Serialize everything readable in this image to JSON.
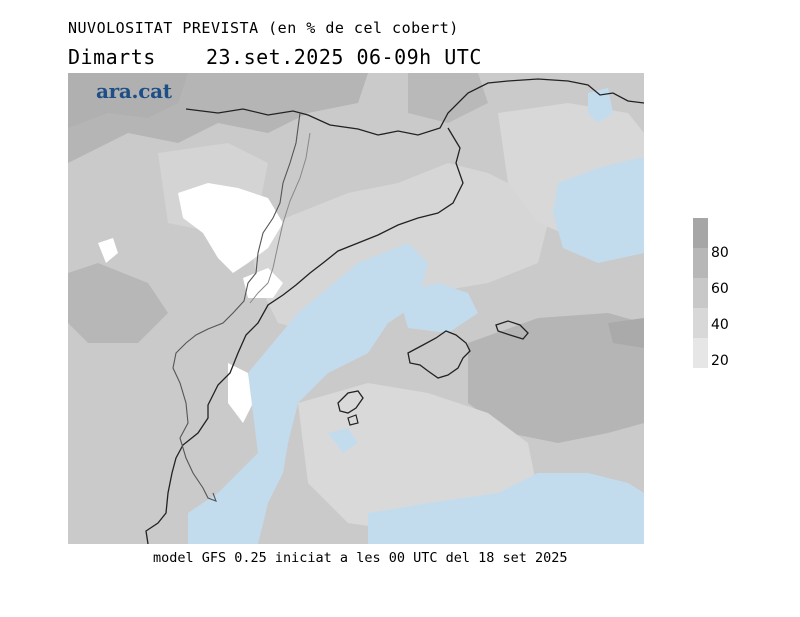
{
  "header": {
    "title": "NUVOLOSITAT PREVISTA (en % de cel cobert)",
    "day": "Dimarts",
    "date_range": "23.set.2025 06-09h UTC"
  },
  "map": {
    "logo_text": "ara.cat"
  },
  "legend": {
    "items": [
      {
        "label": "",
        "color": "#a6a6a6"
      },
      {
        "label": "80",
        "color": "#b7b7b7"
      },
      {
        "label": "60",
        "color": "#c8c8c8"
      },
      {
        "label": "40",
        "color": "#d8d8d8"
      },
      {
        "label": "20",
        "color": "#e6e6e6"
      }
    ]
  },
  "footer": {
    "model_info": "model GFS 0.25 iniciat a les 00 UTC del 18 set 2025"
  },
  "colors": {
    "sea_clear": "#c3dced",
    "land_clear": "#ffffff",
    "coastline": "#222222",
    "border": "#444444",
    "logo": "#1d4f86"
  }
}
